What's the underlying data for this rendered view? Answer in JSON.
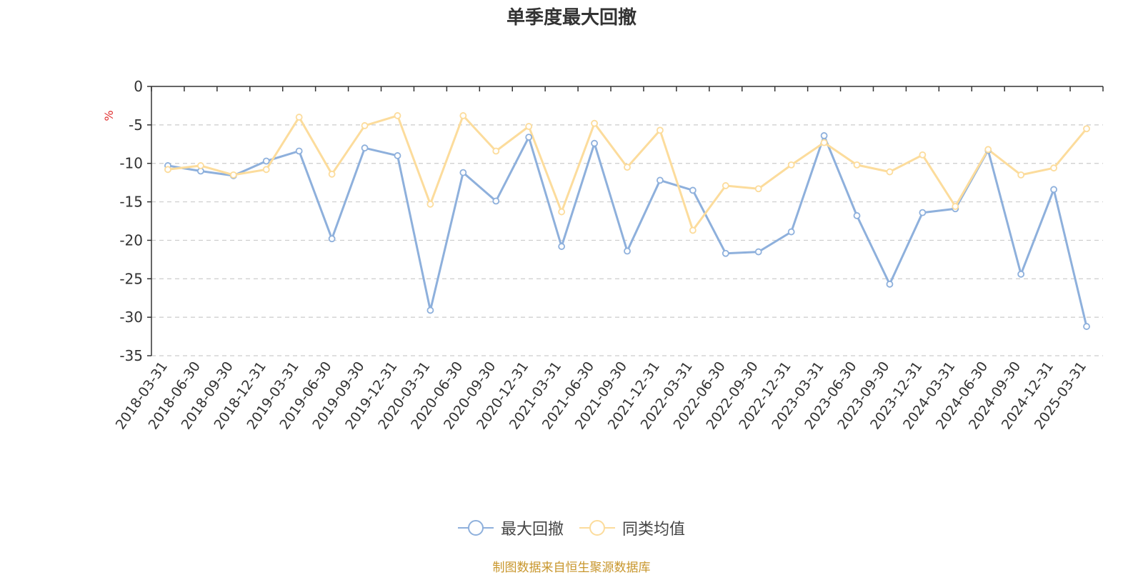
{
  "chart_data": {
    "type": "line",
    "title": "单季度最大回撤",
    "ylabel": "%",
    "ylim": [
      -35,
      0
    ],
    "yticks": [
      0,
      -5,
      -10,
      -15,
      -20,
      -25,
      -30,
      -35
    ],
    "grid": true,
    "legend_position": "bottom-center",
    "categories": [
      "2018-03-31",
      "2018-06-30",
      "2018-09-30",
      "2018-12-31",
      "2019-03-31",
      "2019-06-30",
      "2019-09-30",
      "2019-12-31",
      "2020-03-31",
      "2020-06-30",
      "2020-09-30",
      "2020-12-31",
      "2021-03-31",
      "2021-06-30",
      "2021-09-30",
      "2021-12-31",
      "2022-03-31",
      "2022-06-30",
      "2022-09-30",
      "2022-12-31",
      "2023-03-31",
      "2023-06-30",
      "2023-09-30",
      "2023-12-31",
      "2024-03-31",
      "2024-06-30",
      "2024-09-30",
      "2024-12-31",
      "2025-03-31"
    ],
    "series": [
      {
        "name": "最大回撤",
        "color": "#8eb0dc",
        "values": [
          -10.3,
          -11.0,
          -11.6,
          -9.7,
          -8.4,
          -19.8,
          -8.0,
          -9.0,
          -29.1,
          -11.2,
          -14.9,
          -6.6,
          -20.8,
          -7.4,
          -21.4,
          -12.2,
          -13.5,
          -21.7,
          -21.5,
          -18.9,
          -6.4,
          -16.8,
          -25.7,
          -16.4,
          -15.9,
          -8.3,
          -24.4,
          -13.4,
          -31.2
        ]
      },
      {
        "name": "同类均值",
        "color": "#fcdc9c",
        "values": [
          -10.8,
          -10.3,
          -11.5,
          -10.8,
          -4.0,
          -11.4,
          -5.1,
          -3.8,
          -15.3,
          -3.8,
          -8.4,
          -5.2,
          -16.3,
          -4.8,
          -10.5,
          -5.7,
          -18.7,
          -12.9,
          -13.3,
          -10.2,
          -7.3,
          -10.2,
          -11.1,
          -8.9,
          -15.6,
          -8.2,
          -11.5,
          -10.6,
          -5.5
        ]
      }
    ]
  },
  "source_note": "制图数据来自恒生聚源数据库",
  "colors": {
    "source_note": "#c8962c",
    "axis": "#333333",
    "grid": "#cccccc",
    "ylabel": "#e03030"
  }
}
